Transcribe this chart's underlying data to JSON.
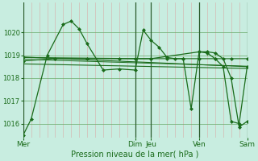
{
  "bg_color": "#c8ede0",
  "grid_color_h": "#6aaa6a",
  "grid_color_v": "#e09090",
  "line_color": "#1a6b1a",
  "dark_vline_color": "#2a5a2a",
  "ylim": [
    1015.4,
    1021.3
  ],
  "yticks": [
    1016,
    1017,
    1018,
    1019,
    1020
  ],
  "xlabel": "Pression niveau de la mer( hPa )",
  "xlabel_color": "#1a6b1a",
  "day_labels": [
    "Mer",
    "Dim",
    "Jeu",
    "Ven",
    "Sam"
  ],
  "xlim": [
    0,
    7
  ],
  "day_x": [
    0,
    3.5,
    4.0,
    5.5,
    7.0
  ],
  "vgrid_step": 0.25,
  "marker": "D",
  "markersize": 2.0,
  "line1_x": [
    0.0,
    0.25,
    0.75,
    1.25,
    1.5,
    1.75,
    2.0,
    2.5,
    3.0,
    3.5,
    3.75,
    4.0,
    4.25,
    4.5,
    4.75,
    5.0,
    5.25,
    5.5,
    5.75,
    6.0,
    6.25,
    6.5,
    6.75,
    7.0
  ],
  "line1_y": [
    1015.5,
    1016.2,
    1019.0,
    1020.35,
    1020.5,
    1020.15,
    1019.5,
    1018.35,
    1018.4,
    1018.35,
    1020.1,
    1019.65,
    1019.35,
    1018.9,
    1018.85,
    1018.85,
    1016.65,
    1019.15,
    1019.15,
    1019.1,
    1018.85,
    1018.0,
    1015.85,
    1016.1
  ],
  "line2_x": [
    0.0,
    1.0,
    2.0,
    3.0,
    3.5,
    4.0,
    4.5,
    5.0,
    5.5,
    6.0,
    6.5,
    7.0
  ],
  "line2_y": [
    1018.75,
    1018.85,
    1018.85,
    1018.85,
    1018.85,
    1018.85,
    1018.85,
    1018.85,
    1018.85,
    1018.85,
    1018.85,
    1018.85
  ],
  "trend1_x": [
    0.0,
    7.0
  ],
  "trend1_y": [
    1018.92,
    1018.5
  ],
  "trend2_x": [
    0.0,
    7.0
  ],
  "trend2_y": [
    1018.62,
    1018.42
  ],
  "trend3_x": [
    0.0,
    7.0
  ],
  "trend3_y": [
    1018.82,
    1018.52
  ],
  "line3_x": [
    0.0,
    3.5,
    4.0,
    5.5,
    5.75,
    6.0,
    6.25,
    6.5,
    6.75,
    7.0
  ],
  "line3_y": [
    1018.9,
    1018.85,
    1018.85,
    1019.15,
    1019.1,
    1018.85,
    1018.5,
    1016.1,
    1016.0,
    1018.5
  ]
}
